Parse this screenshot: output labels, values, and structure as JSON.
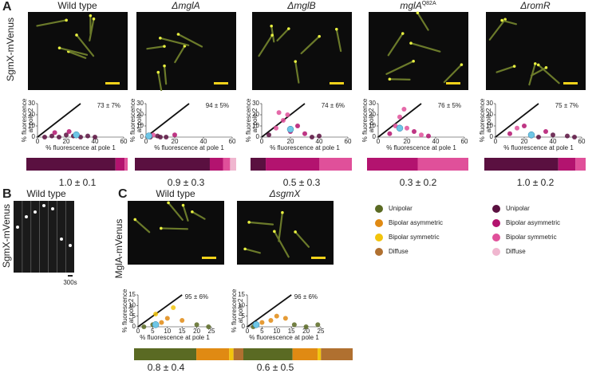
{
  "panel_a": {
    "label": "A",
    "row_label": "SgmX-mVenus",
    "y_axis_label": [
      "% fluorescence",
      "at pole 2"
    ],
    "x_axis_label": "% fluorescence at pole 1",
    "xlim": [
      0,
      60
    ],
    "xticks": [
      0,
      20,
      40,
      60
    ],
    "ylim": [
      0,
      30
    ],
    "yticks": [
      0,
      10,
      20,
      30
    ],
    "legend": {
      "labels": [
        "Unipolar",
        "Bipolar asymmetric",
        "Bipolar symmetric",
        "Diffuse"
      ],
      "colors": [
        "#5a1040",
        "#b3136f",
        "#e0509a",
        "#f0b6cf"
      ]
    },
    "strains": [
      {
        "title": "Wild type",
        "italic": false,
        "percent": "73 ± 7%",
        "ratio": "1.0 ± 0.1",
        "bar": [
          88,
          9,
          3,
          0
        ],
        "mean": [
          27,
          2
        ],
        "points": [
          [
            5,
            0,
            0
          ],
          [
            10,
            1,
            0
          ],
          [
            15,
            0,
            0
          ],
          [
            20,
            2,
            0
          ],
          [
            25,
            1,
            0
          ],
          [
            30,
            0,
            0
          ],
          [
            35,
            1,
            0
          ],
          [
            40,
            0,
            0
          ],
          [
            12,
            4,
            1
          ],
          [
            22,
            5,
            1
          ]
        ]
      },
      {
        "title": "ΔmglA",
        "italic": true,
        "percent": "94 ± 5%",
        "ratio": "0.9 ± 0.3",
        "bar": [
          74,
          13,
          7,
          6
        ],
        "mean": [
          2,
          1
        ],
        "points": [
          [
            3,
            0,
            0
          ],
          [
            8,
            1,
            0
          ],
          [
            14,
            0,
            0
          ],
          [
            20,
            2,
            1
          ],
          [
            5,
            2,
            2
          ],
          [
            10,
            0,
            0
          ]
        ]
      },
      {
        "title": "ΔmglB",
        "italic": true,
        "percent": "74 ± 6%",
        "ratio": "0.5 ± 0.3",
        "bar": [
          15,
          53,
          32,
          0
        ],
        "mean": [
          20,
          7
        ],
        "points": [
          [
            5,
            2,
            0
          ],
          [
            10,
            8,
            2
          ],
          [
            15,
            15,
            2
          ],
          [
            18,
            20,
            2
          ],
          [
            12,
            22,
            2
          ],
          [
            20,
            5,
            1
          ],
          [
            25,
            10,
            1
          ],
          [
            30,
            3,
            1
          ],
          [
            35,
            0,
            0
          ],
          [
            40,
            1,
            0
          ]
        ]
      },
      {
        "title": "mglA",
        "superscript": "Q82A",
        "italic": true,
        "percent": "76 ± 5%",
        "ratio": "0.3 ± 0.2",
        "bar": [
          0,
          50,
          50,
          0
        ],
        "mean": [
          15,
          8
        ],
        "points": [
          [
            8,
            3,
            1
          ],
          [
            12,
            10,
            2
          ],
          [
            15,
            18,
            2
          ],
          [
            18,
            25,
            2
          ],
          [
            20,
            8,
            2
          ],
          [
            25,
            5,
            1
          ],
          [
            30,
            2,
            2
          ],
          [
            35,
            1,
            1
          ]
        ]
      },
      {
        "title": "ΔromR",
        "italic": true,
        "percent": "75 ± 7%",
        "ratio": "1.0 ± 0.2",
        "bar": [
          73,
          17,
          10,
          0
        ],
        "mean": [
          25,
          2
        ],
        "points": [
          [
            10,
            3,
            1
          ],
          [
            15,
            8,
            2
          ],
          [
            20,
            10,
            1
          ],
          [
            25,
            1,
            0
          ],
          [
            30,
            0,
            0
          ],
          [
            40,
            2,
            0
          ],
          [
            50,
            1,
            0
          ],
          [
            55,
            0,
            0
          ],
          [
            35,
            5,
            1
          ]
        ]
      }
    ]
  },
  "panel_b": {
    "label": "B",
    "title": "Wild type",
    "row_label": "SgmX-mVenus",
    "time": "300s"
  },
  "panel_c": {
    "label": "C",
    "row_label": "MglA-mVenus",
    "y_axis_label": [
      "% fluorescence",
      "at pole 2"
    ],
    "x_axis_label": "% fluorescence at pole 1",
    "xlim": [
      0,
      25
    ],
    "xticks": [
      0,
      5,
      10,
      15,
      20,
      25
    ],
    "ylim": [
      0,
      15
    ],
    "yticks": [
      0,
      5,
      10,
      15
    ],
    "legend": {
      "labels": [
        "Unipolar",
        "Bipolar asymmetric",
        "Bipolar symmetric",
        "Diffuse"
      ],
      "colors": [
        "#5a6a23",
        "#e08a13",
        "#f2c40c",
        "#b07030"
      ]
    },
    "strains": [
      {
        "title": "Wild type",
        "italic": false,
        "percent": "95 ± 6%",
        "ratio": "0.8 ± 0.4",
        "bar": [
          57,
          30,
          4,
          9
        ],
        "mean": [
          6,
          1
        ],
        "points": [
          [
            2,
            0,
            0
          ],
          [
            5,
            1,
            0
          ],
          [
            8,
            2,
            1
          ],
          [
            10,
            4,
            1
          ],
          [
            12,
            9,
            2
          ],
          [
            15,
            3,
            1
          ],
          [
            20,
            1,
            0
          ],
          [
            24,
            0,
            0
          ],
          [
            6,
            6,
            2
          ]
        ]
      },
      {
        "title": "ΔsgmX",
        "italic": true,
        "percent": "96 ± 6%",
        "ratio": "0.6 ± 0.5",
        "bar": [
          45,
          23,
          3,
          29
        ],
        "mean": [
          3,
          1
        ],
        "points": [
          [
            2,
            0,
            0
          ],
          [
            5,
            2,
            1
          ],
          [
            8,
            3,
            1
          ],
          [
            10,
            5,
            1
          ],
          [
            13,
            4,
            1
          ],
          [
            16,
            1,
            0
          ],
          [
            20,
            0,
            0
          ],
          [
            24,
            1,
            0
          ]
        ]
      }
    ]
  }
}
